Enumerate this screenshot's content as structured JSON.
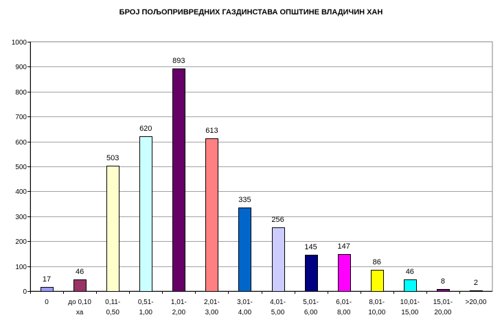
{
  "chart_data": {
    "type": "bar",
    "title": "БРОЈ ПОЉОПРИВРЕДНИХ ГАЗДИНСТАВА ОПШТИНЕ ВЛАДИЧИН ХАН",
    "xlabel": "",
    "ylabel": "",
    "ylim": [
      0,
      1000
    ],
    "yticks": [
      "0",
      "100",
      "200",
      "300",
      "400",
      "500",
      "600",
      "700",
      "800",
      "900",
      "1000"
    ],
    "grid": true,
    "legend": "none",
    "categories": [
      [
        "0"
      ],
      [
        "до 0,10",
        "ха"
      ],
      [
        "0,11-",
        "0,50"
      ],
      [
        "0,51-",
        "1,00"
      ],
      [
        "1,01-",
        "2,00"
      ],
      [
        "2,01-",
        "3,00"
      ],
      [
        "3,01-",
        "4,00"
      ],
      [
        "4,01-",
        "5,00"
      ],
      [
        "5,01-",
        "6,00"
      ],
      [
        "6,01-",
        "8,00"
      ],
      [
        "8,01-",
        "10,00"
      ],
      [
        "10,01-",
        "15,00"
      ],
      [
        "15,01-",
        "20,00"
      ],
      [
        ">20,00"
      ]
    ],
    "values": [
      17,
      46,
      503,
      620,
      893,
      613,
      335,
      256,
      145,
      147,
      86,
      46,
      8,
      2
    ],
    "data_labels": [
      "17",
      "46",
      "503",
      "620",
      "893",
      "613",
      "335",
      "256",
      "145",
      "147",
      "86",
      "46",
      "8",
      "2"
    ],
    "colors": [
      "#9999ff",
      "#993366",
      "#ffffcc",
      "#ccffff",
      "#660066",
      "#ff8080",
      "#0066cc",
      "#ccccff",
      "#000080",
      "#ff00ff",
      "#ffff00",
      "#00ffff",
      "#800080",
      "#800000"
    ]
  }
}
